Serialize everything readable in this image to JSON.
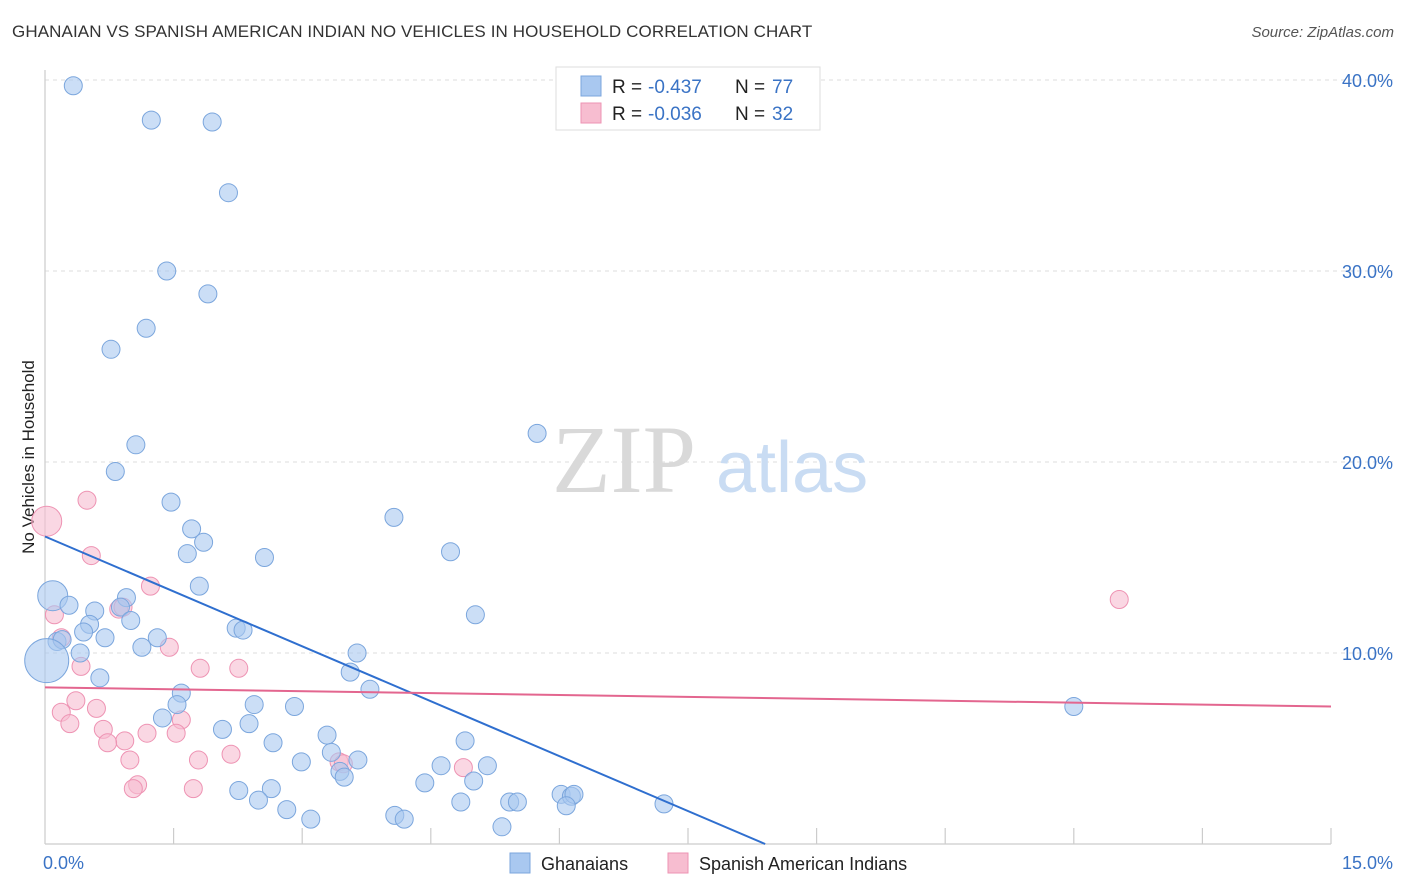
{
  "title": "GHANAIAN VS SPANISH AMERICAN INDIAN NO VEHICLES IN HOUSEHOLD CORRELATION CHART",
  "source": "Source: ZipAtlas.com",
  "watermark": {
    "zip": "ZIP",
    "atlas": "atlas"
  },
  "legend_box": {
    "rows": [
      {
        "r_label": "R =",
        "r_value": "-0.437",
        "n_label": "N =",
        "n_value": "77"
      },
      {
        "r_label": "R =",
        "r_value": "-0.036",
        "n_label": "N =",
        "n_value": "32"
      }
    ]
  },
  "bottom_legend": {
    "series1": "Ghanaians",
    "series2": "Spanish American Indians"
  },
  "colors": {
    "blue_fill": "#a9c8f0",
    "blue_stroke": "#7ba6dd",
    "blue_line": "#2f6fcf",
    "pink_fill": "#f7bdd0",
    "pink_stroke": "#ee93b3",
    "pink_line": "#e3668f",
    "tick_text": "#3a73c5",
    "grid": "#dddddd"
  },
  "chart_data": {
    "type": "scatter",
    "title": "GHANAIAN VS SPANISH AMERICAN INDIAN NO VEHICLES IN HOUSEHOLD CORRELATION CHART",
    "xlabel": "",
    "ylabel": "No Vehicles in Household",
    "xlim": [
      0,
      15
    ],
    "ylim": [
      0,
      40
    ],
    "x_tick_labels": [
      "0.0%",
      "15.0%"
    ],
    "y_ticks": [
      10,
      20,
      30,
      40
    ],
    "y_tick_labels": [
      "10.0%",
      "20.0%",
      "30.0%",
      "40.0%"
    ],
    "grid": true,
    "legend": "bottom-center",
    "series": [
      {
        "name": "Ghanaians",
        "R": -0.437,
        "N": 77,
        "trend": {
          "x0": 0,
          "y0": 16.1,
          "x1": 8.4,
          "y1": 0
        },
        "points": [
          [
            0.33,
            39.7,
            1
          ],
          [
            1.24,
            37.9,
            1
          ],
          [
            1.95,
            37.8,
            1
          ],
          [
            2.14,
            34.1,
            1
          ],
          [
            1.42,
            30.0,
            1
          ],
          [
            1.9,
            28.8,
            1
          ],
          [
            1.18,
            27.0,
            1
          ],
          [
            0.77,
            25.9,
            1
          ],
          [
            1.06,
            20.9,
            1
          ],
          [
            0.82,
            19.5,
            1
          ],
          [
            5.74,
            21.5,
            1
          ],
          [
            1.47,
            17.9,
            1
          ],
          [
            4.07,
            17.1,
            1
          ],
          [
            1.71,
            16.5,
            1
          ],
          [
            1.85,
            15.8,
            1
          ],
          [
            1.66,
            15.2,
            1
          ],
          [
            2.56,
            15.0,
            1
          ],
          [
            4.73,
            15.3,
            1
          ],
          [
            1.8,
            13.5,
            1
          ],
          [
            0.09,
            13.0,
            2
          ],
          [
            0.28,
            12.5,
            1
          ],
          [
            0.95,
            12.9,
            1
          ],
          [
            0.58,
            12.2,
            1
          ],
          [
            0.88,
            12.4,
            1
          ],
          [
            1.0,
            11.7,
            1
          ],
          [
            0.52,
            11.5,
            1
          ],
          [
            2.23,
            11.3,
            1
          ],
          [
            2.31,
            11.2,
            1
          ],
          [
            0.45,
            11.1,
            1
          ],
          [
            0.7,
            10.8,
            1
          ],
          [
            1.31,
            10.8,
            1
          ],
          [
            0.14,
            10.6,
            1
          ],
          [
            0.2,
            10.7,
            1
          ],
          [
            1.13,
            10.3,
            1
          ],
          [
            5.02,
            12.0,
            1
          ],
          [
            0.02,
            9.6,
            3
          ],
          [
            0.41,
            10.0,
            1
          ],
          [
            3.64,
            10.0,
            1
          ],
          [
            3.56,
            9.0,
            1
          ],
          [
            0.64,
            8.7,
            1
          ],
          [
            3.79,
            8.1,
            1
          ],
          [
            1.59,
            7.9,
            1
          ],
          [
            1.54,
            7.3,
            1
          ],
          [
            2.44,
            7.3,
            1
          ],
          [
            2.91,
            7.2,
            1
          ],
          [
            12.0,
            7.2,
            1
          ],
          [
            1.37,
            6.6,
            1
          ],
          [
            2.38,
            6.3,
            1
          ],
          [
            2.07,
            6.0,
            1
          ],
          [
            3.29,
            5.7,
            1
          ],
          [
            4.9,
            5.4,
            1
          ],
          [
            2.66,
            5.3,
            1
          ],
          [
            3.34,
            4.8,
            1
          ],
          [
            3.65,
            4.4,
            1
          ],
          [
            2.99,
            4.3,
            1
          ],
          [
            4.62,
            4.1,
            1
          ],
          [
            5.16,
            4.1,
            1
          ],
          [
            3.44,
            3.8,
            1
          ],
          [
            3.49,
            3.5,
            1
          ],
          [
            4.43,
            3.2,
            1
          ],
          [
            2.26,
            2.8,
            1
          ],
          [
            2.64,
            2.9,
            1
          ],
          [
            5.0,
            3.3,
            1
          ],
          [
            6.02,
            2.6,
            1
          ],
          [
            6.14,
            2.5,
            1
          ],
          [
            6.17,
            2.6,
            1
          ],
          [
            2.49,
            2.3,
            1
          ],
          [
            4.85,
            2.2,
            1
          ],
          [
            5.42,
            2.2,
            1
          ],
          [
            5.51,
            2.2,
            1
          ],
          [
            6.08,
            2.0,
            1
          ],
          [
            7.22,
            2.1,
            1
          ],
          [
            2.82,
            1.8,
            1
          ],
          [
            4.08,
            1.5,
            1
          ],
          [
            4.19,
            1.3,
            1
          ],
          [
            3.1,
            1.3,
            1
          ],
          [
            5.33,
            0.9,
            1
          ]
        ]
      },
      {
        "name": "Spanish American Indians",
        "R": -0.036,
        "N": 32,
        "trend": {
          "x0": 0,
          "y0": 8.2,
          "x1": 15,
          "y1": 7.2
        },
        "points": [
          [
            0.02,
            16.9,
            2
          ],
          [
            0.49,
            18.0,
            1
          ],
          [
            0.54,
            15.1,
            1
          ],
          [
            1.23,
            13.5,
            1
          ],
          [
            0.11,
            12.0,
            1
          ],
          [
            0.86,
            12.3,
            1
          ],
          [
            0.91,
            12.4,
            1
          ],
          [
            0.19,
            10.8,
            1
          ],
          [
            1.45,
            10.3,
            1
          ],
          [
            0.42,
            9.3,
            1
          ],
          [
            1.81,
            9.2,
            1
          ],
          [
            2.26,
            9.2,
            1
          ],
          [
            0.36,
            7.5,
            1
          ],
          [
            0.6,
            7.1,
            1
          ],
          [
            0.19,
            6.9,
            1
          ],
          [
            0.29,
            6.3,
            1
          ],
          [
            1.59,
            6.5,
            1
          ],
          [
            0.68,
            6.0,
            1
          ],
          [
            1.19,
            5.8,
            1
          ],
          [
            1.53,
            5.8,
            1
          ],
          [
            0.93,
            5.4,
            1
          ],
          [
            0.73,
            5.3,
            1
          ],
          [
            2.17,
            4.7,
            1
          ],
          [
            0.99,
            4.4,
            1
          ],
          [
            1.79,
            4.4,
            1
          ],
          [
            3.43,
            4.3,
            1
          ],
          [
            3.48,
            4.2,
            1
          ],
          [
            4.88,
            4.0,
            1
          ],
          [
            1.08,
            3.1,
            1
          ],
          [
            1.03,
            2.9,
            1
          ],
          [
            1.73,
            2.9,
            1
          ],
          [
            12.53,
            12.8,
            1
          ]
        ]
      }
    ]
  }
}
